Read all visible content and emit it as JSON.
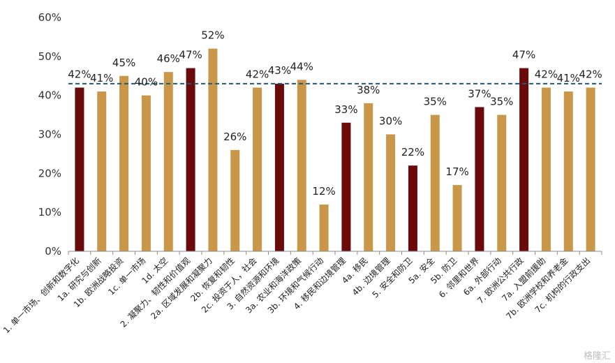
{
  "chart_data": {
    "type": "bar",
    "categories": [
      "1. 单一市场、创新和数字化",
      "1a. 研究与创新",
      "1b. 欧洲战略投资",
      "1c. 单一市场",
      "1d. 太空",
      "2. 凝聚力、韧性和价值观",
      "2a. 区域发展和凝聚力",
      "2b. 恢复和韧性",
      "2c. 投资于人，社会",
      "3. 自然资源和环境",
      "3a. 农业和海洋政策",
      "3b. 环境和气候行动",
      "4. 移民和边境管理",
      "4a. 移民",
      "4b. 边境管理",
      "5. 安全和防卫",
      "5a. 安全",
      "5b. 防卫",
      "6. 邻里和世界",
      "6a. 外部行动",
      "7. 欧洲公共行政",
      "7a. 入盟前援助",
      "7b. 欧洲学校和养老金",
      "7c. 机构的行政支出"
    ],
    "values": [
      42,
      41,
      45,
      40,
      46,
      47,
      52,
      26,
      42,
      43,
      44,
      12,
      33,
      38,
      30,
      22,
      35,
      17,
      37,
      35,
      47,
      42,
      41,
      42
    ],
    "value_labels": [
      "42%",
      "41%",
      "45%",
      "40%",
      "46%",
      "47%",
      "52%",
      "26%",
      "42%",
      "43%",
      "44%",
      "12%",
      "33%",
      "38%",
      "30%",
      "22%",
      "35%",
      "17%",
      "37%",
      "35%",
      "47%",
      "42%",
      "41%",
      "42%"
    ],
    "highlight": [
      true,
      false,
      false,
      false,
      false,
      true,
      false,
      false,
      false,
      true,
      false,
      false,
      true,
      false,
      false,
      true,
      false,
      false,
      true,
      false,
      true,
      false,
      false,
      false
    ],
    "colors": {
      "highlight": "#6b0a0a",
      "normal": "#c9974a",
      "reference_line": "#1f5a78"
    },
    "reference_line": 43,
    "y_ticks": [
      "0%",
      "10%",
      "20%",
      "30%",
      "40%",
      "50%",
      "60%"
    ],
    "ylim": [
      0,
      60
    ],
    "title": "",
    "xlabel": "",
    "ylabel": "",
    "grid": false,
    "legend": "none"
  },
  "watermark": "格隆汇"
}
